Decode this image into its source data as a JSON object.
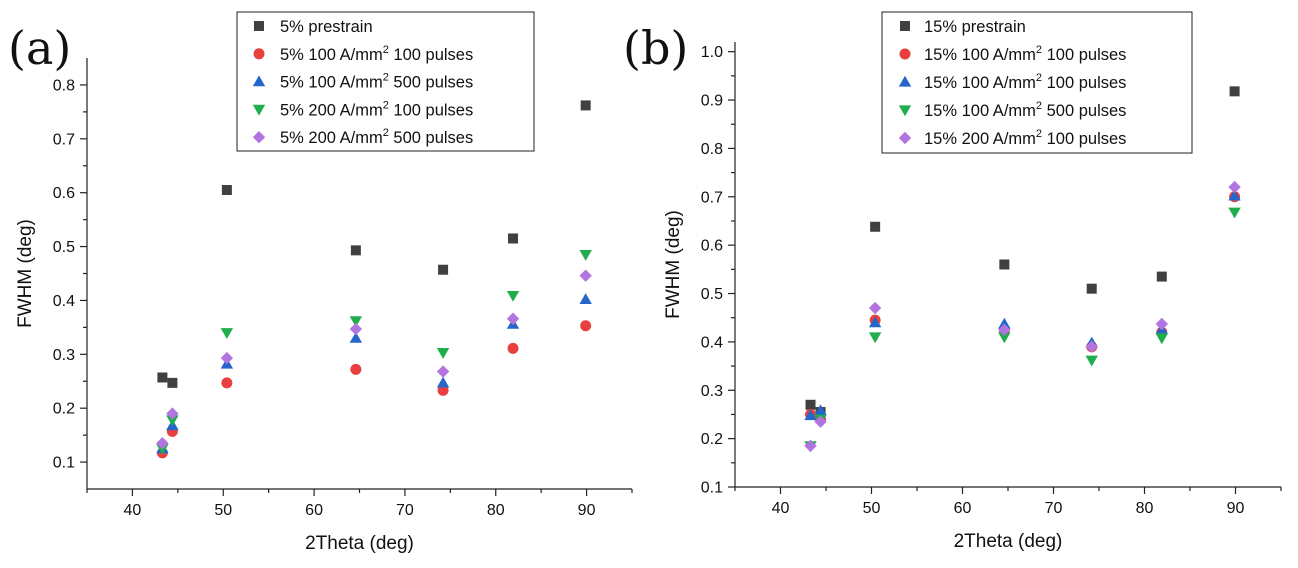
{
  "colors": {
    "prestrain": "#404040",
    "red": "#e8403f",
    "blue": "#2466c9",
    "green": "#1fad4e",
    "purple": "#b174e0"
  },
  "chart_data": [
    {
      "panel_label": "(a)",
      "type": "scatter",
      "xlabel": "2Theta (deg)",
      "ylabel": "FWHM (deg)",
      "xlim": [
        35,
        95
      ],
      "ylim": [
        0.05,
        0.85
      ],
      "xticks": [
        40,
        50,
        60,
        70,
        80,
        90
      ],
      "yticks": [
        0.1,
        0.2,
        0.3,
        0.4,
        0.5,
        0.6,
        0.7,
        0.8
      ],
      "ytick_labels": [
        "0.1",
        "0.2",
        "0.3",
        "0.4",
        "0.5",
        "0.6",
        "0.7",
        "0.8"
      ],
      "x": [
        43.3,
        44.4,
        50.4,
        64.6,
        74.2,
        81.9,
        89.9
      ],
      "grid": false,
      "legend_position": "top-center",
      "series": [
        {
          "name": "5% prestrain",
          "marker": "square",
          "color": "#404040",
          "values": [
            0.257,
            0.247,
            0.605,
            0.493,
            0.457,
            0.515,
            0.762
          ]
        },
        {
          "name": "5% 100 A/mm2 100 pulses",
          "legend_pre": "5% 100 A/mm",
          "legend_sup": "2",
          "legend_post": " 100 pulses",
          "marker": "circle",
          "color": "#e8403f",
          "values": [
            0.117,
            0.157,
            0.247,
            0.272,
            0.233,
            0.311,
            0.353
          ]
        },
        {
          "name": "5% 100 A/mm2 500 pulses",
          "legend_pre": "5% 100 A/mm",
          "legend_sup": "2",
          "legend_post": " 500 pulses",
          "marker": "triangle-up",
          "color": "#2466c9",
          "values": [
            0.125,
            0.168,
            0.282,
            0.33,
            0.247,
            0.356,
            0.402
          ]
        },
        {
          "name": "5% 200 A/mm2 100 pulses",
          "legend_pre": "5% 200 A/mm",
          "legend_sup": "2",
          "legend_post": " 100 pulses",
          "marker": "triangle-down",
          "color": "#1fad4e",
          "values": [
            0.125,
            0.178,
            0.34,
            0.362,
            0.303,
            0.409,
            0.485
          ]
        },
        {
          "name": "5% 200 A/mm2 500 pulses",
          "legend_pre": "5% 200 A/mm",
          "legend_sup": "2",
          "legend_post": " 500 pulses",
          "marker": "diamond",
          "color": "#b174e0",
          "values": [
            0.135,
            0.19,
            0.293,
            0.347,
            0.268,
            0.366,
            0.446
          ]
        }
      ]
    },
    {
      "panel_label": "(b)",
      "type": "scatter",
      "xlabel": "2Theta (deg)",
      "ylabel": "FWHM (deg)",
      "xlim": [
        35,
        95
      ],
      "ylim": [
        0.1,
        1.02
      ],
      "xticks": [
        40,
        50,
        60,
        70,
        80,
        90
      ],
      "yticks": [
        0.1,
        0.2,
        0.3,
        0.4,
        0.5,
        0.6,
        0.7,
        0.8,
        0.9,
        1.0
      ],
      "ytick_labels": [
        "0.1",
        "0.2",
        "0.3",
        "0.4",
        "0.5",
        "0.6",
        "0.7",
        "0.8",
        "0.9",
        "1.0"
      ],
      "x": [
        43.3,
        44.4,
        50.4,
        64.6,
        74.2,
        81.9,
        89.9
      ],
      "grid": false,
      "legend_position": "top-center",
      "series": [
        {
          "name": "15% prestrain",
          "marker": "square",
          "color": "#404040",
          "values": [
            0.27,
            0.255,
            0.638,
            0.56,
            0.51,
            0.535,
            0.918
          ]
        },
        {
          "name": "15% 100 A/mm2 100 pulses",
          "legend_pre": "15% 100 A/mm",
          "legend_sup": "2",
          "legend_post": " 100 pulses",
          "marker": "circle",
          "color": "#e8403f",
          "values": [
            0.25,
            0.24,
            0.445,
            0.425,
            0.39,
            0.42,
            0.7
          ]
        },
        {
          "name": "15% 100 A/mm2 100 pulses",
          "legend_pre": "15% 100 A/mm",
          "legend_sup": "2",
          "legend_post": " 100 pulses",
          "marker": "triangle-up",
          "color": "#2466c9",
          "values": [
            0.248,
            0.258,
            0.44,
            0.437,
            0.398,
            0.425,
            0.702
          ]
        },
        {
          "name": "15% 100 A/mm2 500 pulses",
          "legend_pre": "15% 100 A/mm",
          "legend_sup": "2",
          "legend_post": " 500 pulses",
          "marker": "triangle-down",
          "color": "#1fad4e",
          "values": [
            0.185,
            0.24,
            0.41,
            0.41,
            0.362,
            0.408,
            0.668
          ]
        },
        {
          "name": "15% 200 A/mm2 100 pulses",
          "legend_pre": "15% 200 A/mm",
          "legend_sup": "2",
          "legend_post": " 100 pulses",
          "marker": "diamond",
          "color": "#b174e0",
          "values": [
            0.185,
            0.235,
            0.47,
            0.425,
            0.39,
            0.437,
            0.72
          ]
        }
      ]
    }
  ]
}
